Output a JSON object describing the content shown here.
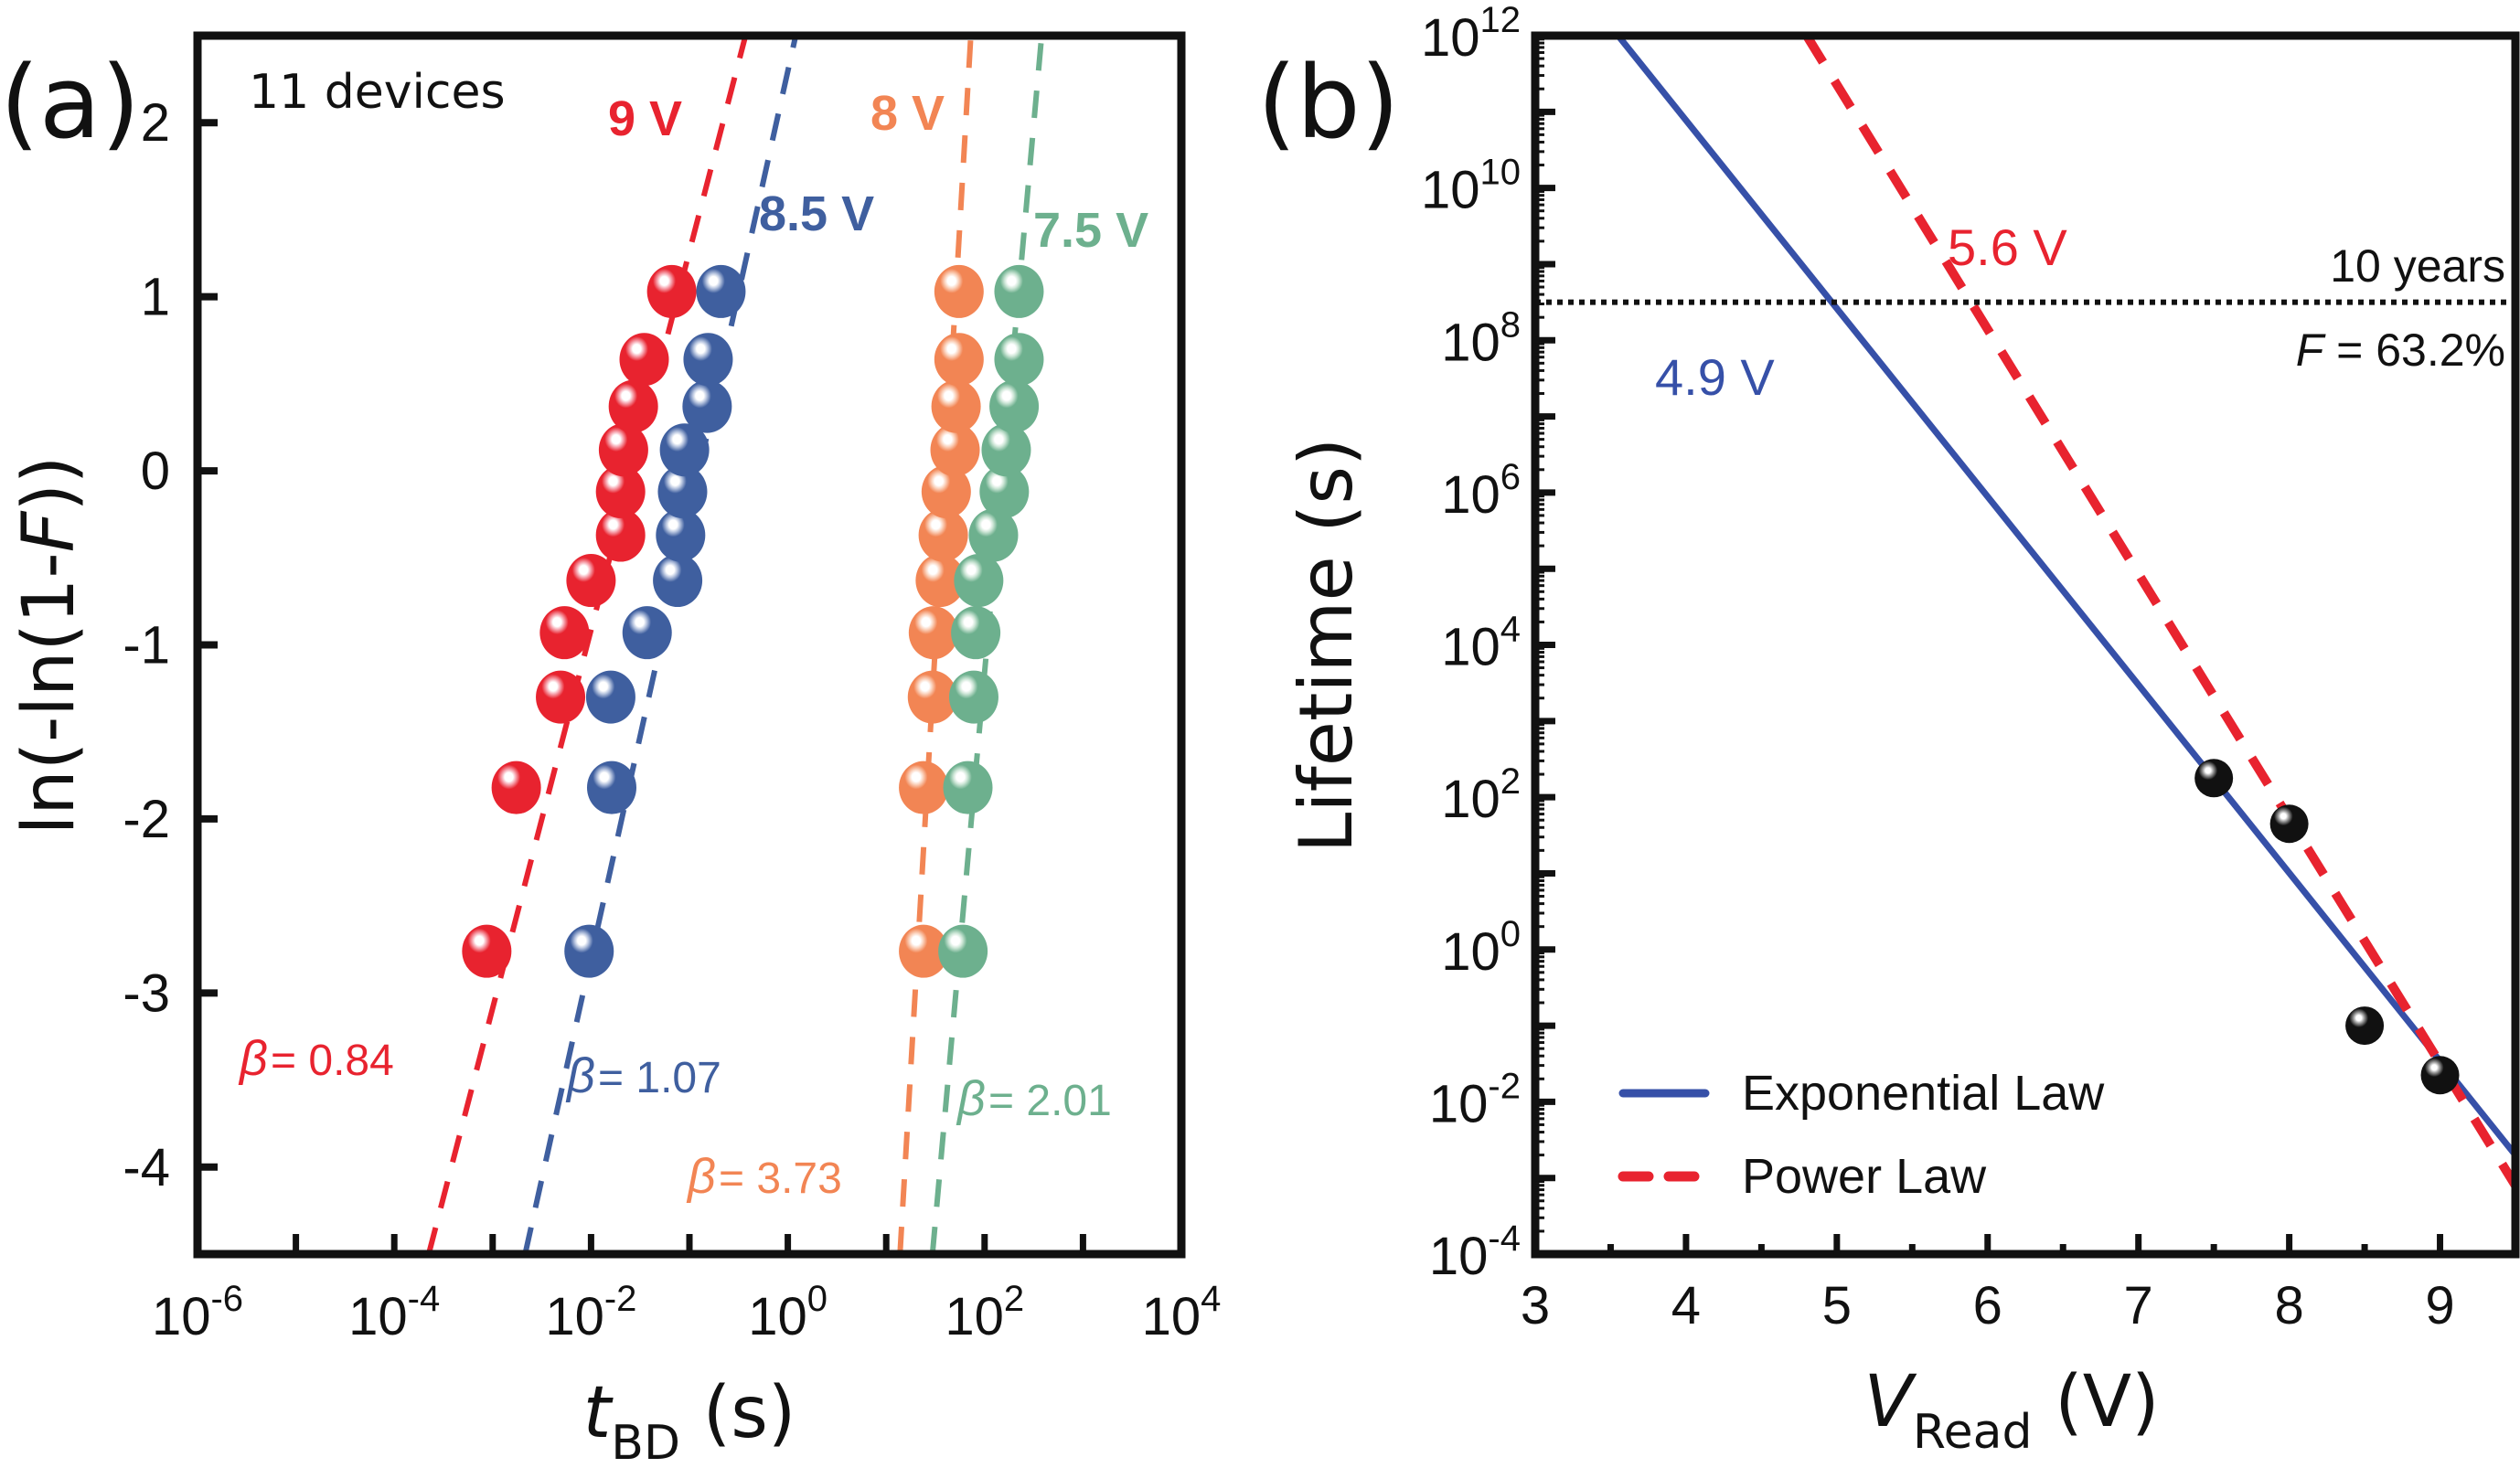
{
  "chart_data": [
    {
      "panel_label": "(a)",
      "type": "scatter",
      "title": "",
      "xlabel_main": "t",
      "xlabel_sub": "BD",
      "xlabel_unit": " (s)",
      "ylabel_prefix": "ln(-ln(1-",
      "ylabel_italic": "F",
      "ylabel_suffix": "))",
      "xscale": "log",
      "xlim_log10": [
        -6,
        4
      ],
      "ylim": [
        -4.5,
        2.5
      ],
      "xticks_log10": [
        -6,
        -4,
        -2,
        0,
        2,
        4
      ],
      "xtick_labels": [
        {
          "base": "10",
          "exp": "-6"
        },
        {
          "base": "10",
          "exp": "-4"
        },
        {
          "base": "10",
          "exp": "-2"
        },
        {
          "base": "10",
          "exp": "0"
        },
        {
          "base": "10",
          "exp": "2"
        },
        {
          "base": "10",
          "exp": "4"
        }
      ],
      "yticks": [
        2,
        1,
        0,
        -1,
        -2,
        -3,
        -4
      ],
      "ytick_labels": [
        "2",
        "1",
        "0",
        "-1",
        "-2",
        "-3",
        "-4"
      ],
      "annotation": "11 devices",
      "grid": false,
      "y_values": [
        -2.76,
        -1.82,
        -1.3,
        -0.93,
        -0.63,
        -0.37,
        -0.12,
        0.12,
        0.37,
        0.64,
        1.03
      ],
      "series": [
        {
          "name": "9 V",
          "color": "#e8232f",
          "highlight": "#f7a9b3",
          "beta_label": "= 0.84",
          "x_log10": [
            -3.06,
            -2.76,
            -2.31,
            -2.27,
            -2.0,
            -1.7,
            -1.7,
            -1.67,
            -1.57,
            -1.46,
            -1.18
          ],
          "fit_log10_at_ymin": -3.65,
          "fit_log10_at_ymax": -0.43
        },
        {
          "name": "8.5 V",
          "color": "#3f5f9f",
          "highlight": "#b9c6e0",
          "beta_label": "= 1.07",
          "x_log10": [
            -2.02,
            -1.79,
            -1.8,
            -1.43,
            -1.12,
            -1.09,
            -1.07,
            -1.05,
            -0.82,
            -0.81,
            -0.68
          ],
          "fit_log10_at_ymin": -2.67,
          "fit_log10_at_ymax": 0.08
        },
        {
          "name": "8 V",
          "color": "#f28554",
          "highlight": "#fbd4bf",
          "beta_label": "= 3.73",
          "x_log10": [
            1.38,
            1.38,
            1.47,
            1.48,
            1.55,
            1.58,
            1.61,
            1.7,
            1.71,
            1.74,
            1.74
          ],
          "fit_log10_at_ymin": 1.14,
          "fit_log10_at_ymax": 1.86
        },
        {
          "name": "7.5 V",
          "color": "#6db08e",
          "highlight": "#cfe7d8",
          "beta_label": "= 2.01",
          "x_log10": [
            1.78,
            1.83,
            1.89,
            1.91,
            1.94,
            2.09,
            2.2,
            2.22,
            2.3,
            2.35,
            2.35
          ],
          "fit_log10_at_ymin": 1.47,
          "fit_log10_at_ymax": 2.58
        }
      ]
    },
    {
      "panel_label": "(b)",
      "type": "scatter",
      "title": "",
      "xlabel_main": "V",
      "xlabel_sub": "Read",
      "xlabel_unit": " (V)",
      "ylabel": "Lifetime (s)",
      "yscale": "log",
      "xlim": [
        3,
        9.5
      ],
      "ylim_log10": [
        -4,
        12
      ],
      "xticks": [
        3,
        4,
        5,
        6,
        7,
        8,
        9
      ],
      "xtick_labels": [
        "3",
        "4",
        "5",
        "6",
        "7",
        "8",
        "9"
      ],
      "yticks_log10": [
        12,
        10,
        8,
        6,
        4,
        2,
        0,
        -2,
        -4
      ],
      "ytick_labels": [
        {
          "base": "10",
          "exp": "12"
        },
        {
          "base": "10",
          "exp": "10"
        },
        {
          "base": "10",
          "exp": "8"
        },
        {
          "base": "10",
          "exp": "6"
        },
        {
          "base": "10",
          "exp": "4"
        },
        {
          "base": "10",
          "exp": "2"
        },
        {
          "base": "10",
          "exp": "0"
        },
        {
          "base": "10",
          "exp": "-2"
        },
        {
          "base": "10",
          "exp": "-4"
        }
      ],
      "grid": false,
      "points": {
        "name": "Measured lifetime",
        "color": "#111111",
        "x": [
          7.5,
          8.0,
          8.5,
          9.0
        ],
        "y_log10": [
          2.25,
          1.65,
          -1.0,
          -1.65
        ]
      },
      "series": [
        {
          "name": "Exponential Law",
          "style": "solid",
          "color": "#3650a8",
          "x": [
            3.55,
            9.5
          ],
          "y_log10": [
            12,
            -2.7
          ]
        },
        {
          "name": "Power Law",
          "style": "dashed",
          "color": "#e8232f",
          "x": [
            4.8,
            9.5
          ],
          "y_log10": [
            12,
            -3.1
          ]
        }
      ],
      "reference_line": {
        "y_log10": 8.5,
        "label_top": "10 years",
        "label_bottom_italic": "F",
        "label_bottom_rest": " = 63.2%"
      },
      "annotations": [
        {
          "text": "4.9 V",
          "color": "#3650a8"
        },
        {
          "text": "5.6 V",
          "color": "#e8232f"
        }
      ],
      "legend": {
        "placement": "bottom-left",
        "entries": [
          "Exponential Law",
          "Power Law"
        ]
      }
    }
  ]
}
